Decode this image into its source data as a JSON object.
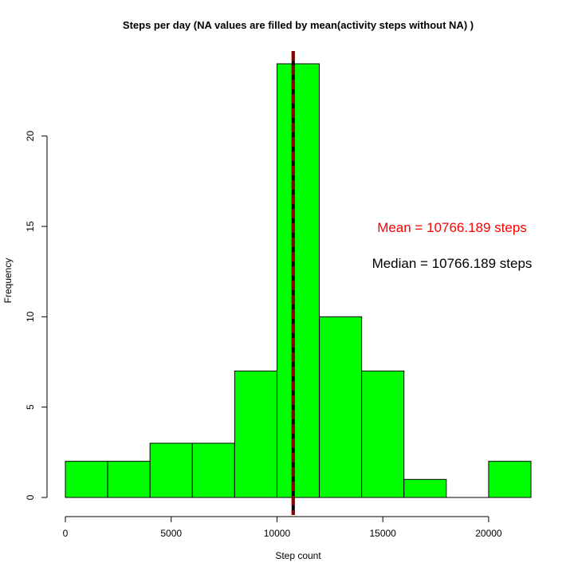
{
  "chart_data": {
    "type": "bar",
    "title": "Steps per day (NA values are filled by mean(activity steps without NA)  )",
    "xlabel": "Step count",
    "ylabel": "Frequency",
    "bins": [
      {
        "from": 0,
        "to": 2000,
        "count": 2
      },
      {
        "from": 2000,
        "to": 4000,
        "count": 2
      },
      {
        "from": 4000,
        "to": 6000,
        "count": 3
      },
      {
        "from": 6000,
        "to": 8000,
        "count": 3
      },
      {
        "from": 8000,
        "to": 10000,
        "count": 7
      },
      {
        "from": 10000,
        "to": 12000,
        "count": 24
      },
      {
        "from": 12000,
        "to": 14000,
        "count": 10
      },
      {
        "from": 14000,
        "to": 16000,
        "count": 7
      },
      {
        "from": 16000,
        "to": 18000,
        "count": 1
      },
      {
        "from": 18000,
        "to": 20000,
        "count": 0
      },
      {
        "from": 20000,
        "to": 22000,
        "count": 2
      }
    ],
    "x_ticks": [
      "0",
      "5000",
      "10000",
      "15000",
      "20000"
    ],
    "y_ticks": [
      "0",
      "5",
      "10",
      "15",
      "20"
    ],
    "xlim": [
      0,
      22000
    ],
    "ylim": [
      0,
      24
    ],
    "bar_color": "#00ff00",
    "mean": 10766.189,
    "median": 10766.189,
    "mean_line_color": "#8b0000",
    "median_line_color": "#000000",
    "annotations": {
      "mean_text": "Mean = 10766.189  steps",
      "mean_color": "#ff0000",
      "median_text": "Median = 10766.189  steps",
      "median_color": "#000000"
    }
  }
}
